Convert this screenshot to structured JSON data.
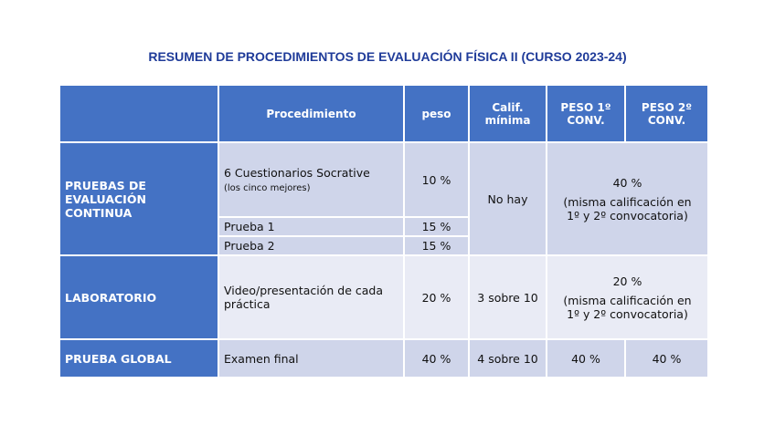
{
  "title": "RESUMEN DE PROCEDIMIENTOS DE EVALUACIÓN FÍSICA II (CURSO 2023-24)",
  "table": {
    "header": [
      "Procedimiento",
      "peso",
      "Calif. mínima",
      "PESO 1º CONV.",
      "PESO 2º CONV."
    ],
    "sections": [
      {
        "name": "PRUEBAS DE EVALUACIÓN CONTINUA",
        "items": [
          {
            "procedure": "6 Cuestionarios Socrative",
            "note": "(los cinco mejores)",
            "weight": "10 %"
          },
          {
            "procedure": "Prueba 1",
            "weight": "15 %"
          },
          {
            "procedure": "Prueba 2",
            "weight": "15 %"
          }
        ],
        "min": "No hay",
        "conv": "40 %",
        "conv_note": "(misma calificación en 1º y 2º convocatoria)"
      },
      {
        "name": "LABORATORIO",
        "items": [
          {
            "procedure": "Video/presentación de cada práctica",
            "weight": "20 %"
          }
        ],
        "min": "3 sobre 10",
        "conv": "20 %",
        "conv_note": "(misma calificación en 1º y 2º convocatoria)"
      },
      {
        "name": "PRUEBA GLOBAL",
        "items": [
          {
            "procedure": "Examen final",
            "weight": "40 %"
          }
        ],
        "min": "4 sobre 10",
        "conv1": "40 %",
        "conv2": "40 %"
      }
    ]
  }
}
